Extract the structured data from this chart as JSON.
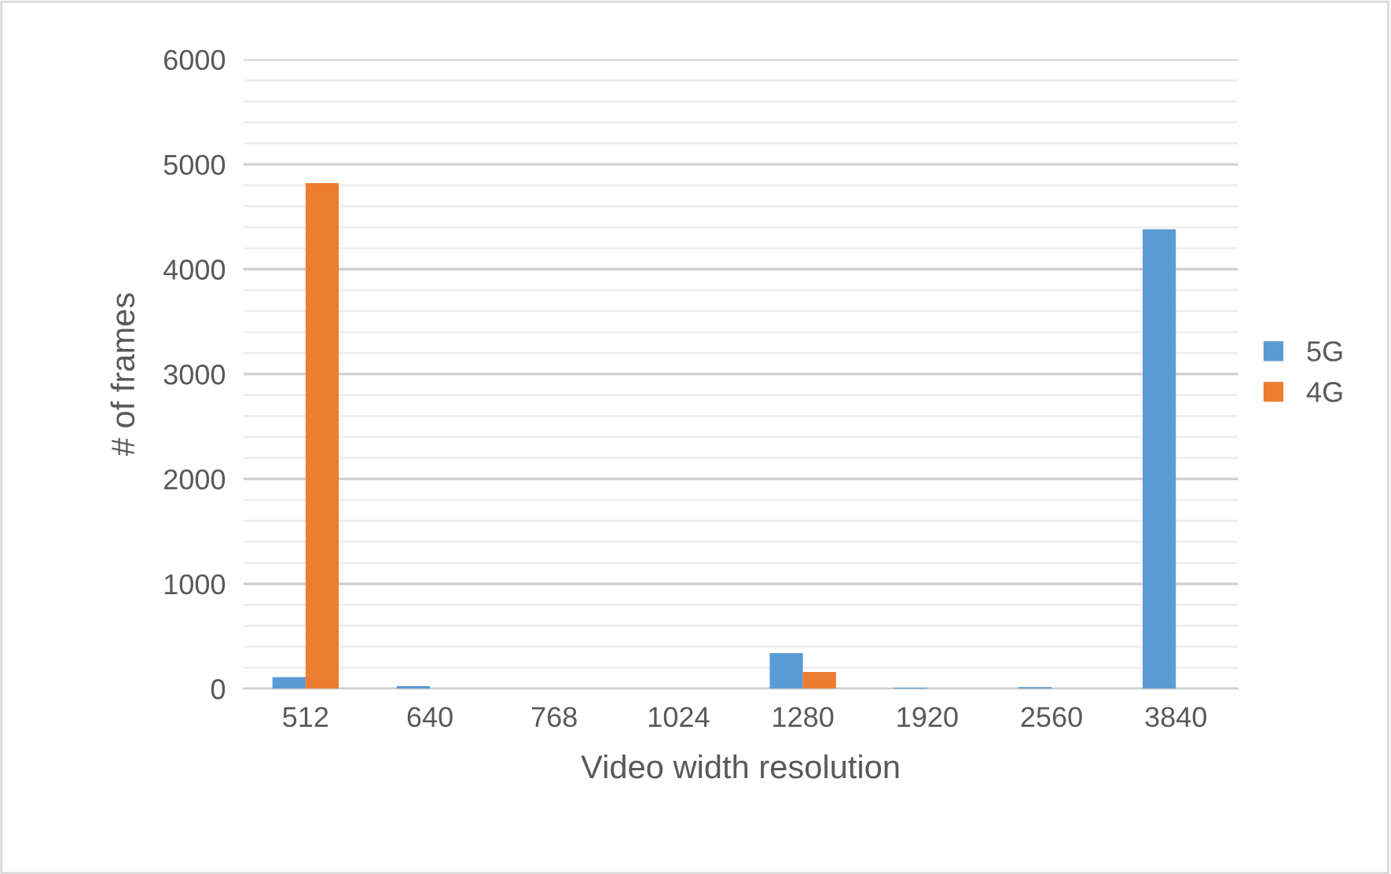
{
  "chart_data": {
    "type": "bar",
    "xlabel": "Video width resolution",
    "ylabel": "# of frames",
    "categories": [
      "512",
      "640",
      "768",
      "1024",
      "1280",
      "1920",
      "2560",
      "3840"
    ],
    "series": [
      {
        "name": "5G",
        "color": "#5b9bd5",
        "values": [
          110,
          25,
          0,
          0,
          340,
          10,
          15,
          4380
        ]
      },
      {
        "name": "4G",
        "color": "#ed7d31",
        "values": [
          4820,
          0,
          0,
          0,
          160,
          0,
          0,
          0
        ]
      }
    ],
    "ylim": [
      0,
      6000
    ],
    "yticks": [
      0,
      {
        "value": 200,
        "label": null
      },
      {
        "value": 400,
        "label": null
      },
      {
        "value": 600,
        "label": null
      },
      {
        "value": 800,
        "label": null
      },
      1000,
      {
        "value": 1200,
        "label": null
      },
      {
        "value": 1400,
        "label": null
      },
      {
        "value": 1600,
        "label": null
      },
      {
        "value": 1800,
        "label": null
      },
      2000,
      {
        "value": 2200,
        "label": null
      },
      {
        "value": 2400,
        "label": null
      },
      {
        "value": 2600,
        "label": null
      },
      {
        "value": 2800,
        "label": null
      },
      3000,
      {
        "value": 3200,
        "label": null
      },
      {
        "value": 3400,
        "label": null
      },
      {
        "value": 3600,
        "label": null
      },
      {
        "value": 3800,
        "label": null
      },
      4000,
      {
        "value": 4200,
        "label": null
      },
      {
        "value": 4400,
        "label": null
      },
      {
        "value": 4600,
        "label": null
      },
      {
        "value": 4800,
        "label": null
      },
      5000,
      {
        "value": 5200,
        "label": null
      },
      {
        "value": 5400,
        "label": null
      },
      {
        "value": 5600,
        "label": null
      },
      {
        "value": 5800,
        "label": null
      },
      6000
    ],
    "grid": "y",
    "legend": "right"
  }
}
